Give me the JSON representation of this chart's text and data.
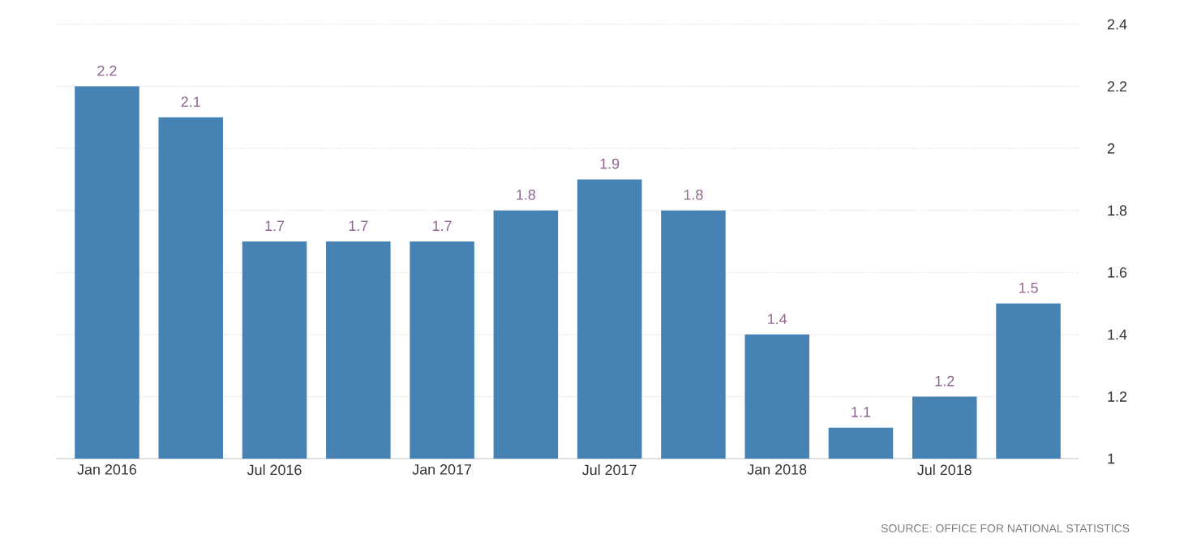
{
  "chart_data": {
    "type": "bar",
    "categories": [
      "Jan 2016",
      null,
      "Jul 2016",
      null,
      "Jan 2017",
      null,
      "Jul 2017",
      null,
      "Jan 2018",
      null,
      "Jul 2018",
      null
    ],
    "values": [
      2.2,
      2.1,
      1.7,
      1.7,
      1.7,
      1.8,
      1.9,
      1.8,
      1.4,
      1.1,
      1.2,
      1.5
    ],
    "color": "#4682b4",
    "ylim": [
      1,
      2.4
    ],
    "yticks": [
      1,
      1.2,
      1.4,
      1.6,
      1.8,
      2,
      2.2,
      2.4
    ],
    "grid": "y",
    "data_labels": true,
    "annotations": [
      "SOURCE: OFFICE FOR NATIONAL STATISTICS"
    ]
  }
}
